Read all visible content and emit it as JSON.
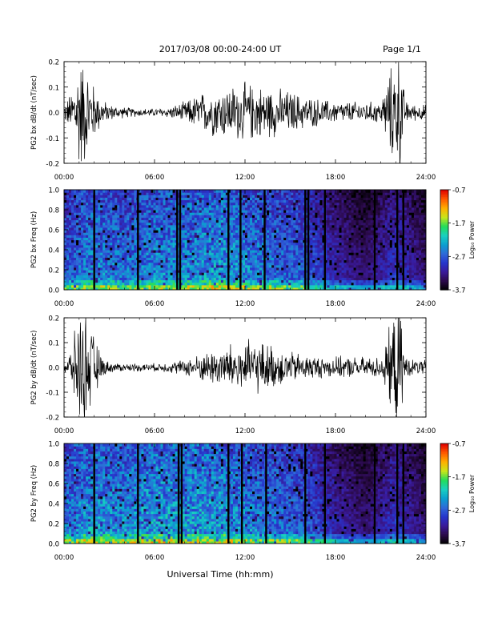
{
  "header": {
    "title": "2017/03/08  00:00-24:00 UT",
    "page": "Page 1/1"
  },
  "footer": {
    "xlabel": "Universal Time (hh:mm)"
  },
  "colorbar": {
    "label": "Log₁₀ Power",
    "ticks": [
      "-0.7",
      "-1.7",
      "-2.7",
      "-3.7"
    ],
    "range": [
      -3.7,
      -0.7
    ],
    "colors": [
      "#000000",
      "#2b0a4a",
      "#3a1a9a",
      "#2636cc",
      "#2f6ad8",
      "#0aa0d0",
      "#1ad0c0",
      "#22dc5a",
      "#c8e61a",
      "#ffb000",
      "#ff5a00",
      "#e00000"
    ]
  },
  "chart_data": [
    {
      "type": "line",
      "ylabel": "PG2 bx dB/dt (nT/sec)",
      "xlim": [
        0,
        24
      ],
      "ylim": [
        -0.2,
        0.2
      ],
      "xticks": [
        "00:00",
        "06:00",
        "12:00",
        "18:00",
        "24:00"
      ],
      "yticks": [
        "0.2",
        "0.1",
        "0.0",
        "-0.1",
        "-0.2"
      ],
      "series": [
        {
          "x": [
            0,
            0.5,
            1.0,
            1.5,
            2.0,
            2.5,
            3.0,
            4.0,
            5.0,
            6.0,
            7.0,
            8.0,
            9.0,
            10.0,
            11.0,
            12.0,
            13.0,
            14.0,
            15.0,
            16.0,
            17.0,
            18.0,
            19.0,
            20.0,
            21.0,
            22.0,
            22.3,
            22.6,
            23.0,
            24.0
          ],
          "envelope": [
            0.03,
            0.08,
            0.22,
            0.18,
            0.1,
            0.05,
            0.03,
            0.02,
            0.015,
            0.015,
            0.02,
            0.04,
            0.07,
            0.09,
            0.1,
            0.11,
            0.1,
            0.09,
            0.08,
            0.06,
            0.05,
            0.04,
            0.04,
            0.04,
            0.04,
            0.22,
            0.22,
            0.05,
            0.03,
            0.03
          ]
        }
      ]
    },
    {
      "type": "heatmap",
      "ylabel": "PG2 bx Freq (Hz)",
      "xlim": [
        0,
        24
      ],
      "ylim": [
        0,
        1.0
      ],
      "xticks": [
        "00:00",
        "06:00",
        "12:00",
        "18:00",
        "24:00"
      ],
      "yticks": [
        "1.0",
        "0.8",
        "0.6",
        "0.4",
        "0.2",
        "0.0"
      ],
      "activity_hours": [
        0,
        2,
        4,
        6,
        8,
        10,
        12,
        14,
        16,
        18,
        20,
        22,
        24
      ],
      "activity_level": [
        0.45,
        0.55,
        0.5,
        0.55,
        0.55,
        0.6,
        0.55,
        0.5,
        0.45,
        0.3,
        0.2,
        0.35,
        0.2
      ],
      "dark_columns_hours": [
        2.0,
        4.9,
        7.5,
        7.7,
        10.9,
        11.7,
        13.3,
        16.0,
        16.2,
        17.3,
        20.6,
        22.1,
        22.5
      ]
    },
    {
      "type": "line",
      "ylabel": "PG2 by dB/dt (nT/sec)",
      "xlim": [
        0,
        24
      ],
      "ylim": [
        -0.2,
        0.2
      ],
      "xticks": [
        "00:00",
        "06:00",
        "12:00",
        "18:00",
        "24:00"
      ],
      "yticks": [
        "0.2",
        "0.1",
        "0.0",
        "-0.1",
        "-0.2"
      ],
      "series": [
        {
          "x": [
            0,
            0.5,
            1.0,
            1.5,
            2.0,
            2.5,
            3.0,
            4.0,
            5.0,
            6.0,
            7.0,
            8.0,
            9.0,
            10.0,
            11.0,
            12.0,
            13.0,
            14.0,
            15.0,
            16.0,
            17.0,
            18.0,
            19.0,
            20.0,
            21.0,
            22.0,
            22.3,
            22.6,
            23.0,
            24.0
          ],
          "envelope": [
            0.02,
            0.07,
            0.22,
            0.2,
            0.12,
            0.04,
            0.02,
            0.015,
            0.015,
            0.015,
            0.02,
            0.03,
            0.05,
            0.07,
            0.09,
            0.1,
            0.1,
            0.08,
            0.06,
            0.05,
            0.04,
            0.04,
            0.04,
            0.04,
            0.04,
            0.22,
            0.22,
            0.05,
            0.03,
            0.03
          ]
        }
      ]
    },
    {
      "type": "heatmap",
      "ylabel": "PG2 by Freq (Hz)",
      "xlim": [
        0,
        24
      ],
      "ylim": [
        0,
        1.0
      ],
      "xticks": [
        "00:00",
        "06:00",
        "12:00",
        "18:00",
        "24:00"
      ],
      "yticks": [
        "1.0",
        "0.8",
        "0.6",
        "0.4",
        "0.2",
        "0.0"
      ],
      "activity_hours": [
        0,
        2,
        4,
        6,
        8,
        10,
        12,
        14,
        16,
        18,
        20,
        22,
        24
      ],
      "activity_level": [
        0.5,
        0.6,
        0.55,
        0.6,
        0.6,
        0.6,
        0.55,
        0.5,
        0.45,
        0.3,
        0.2,
        0.35,
        0.2
      ],
      "dark_columns_hours": [
        2.0,
        4.9,
        7.6,
        7.8,
        10.9,
        11.8,
        13.4,
        16.0,
        17.3,
        20.6,
        22.1,
        22.5
      ]
    }
  ]
}
